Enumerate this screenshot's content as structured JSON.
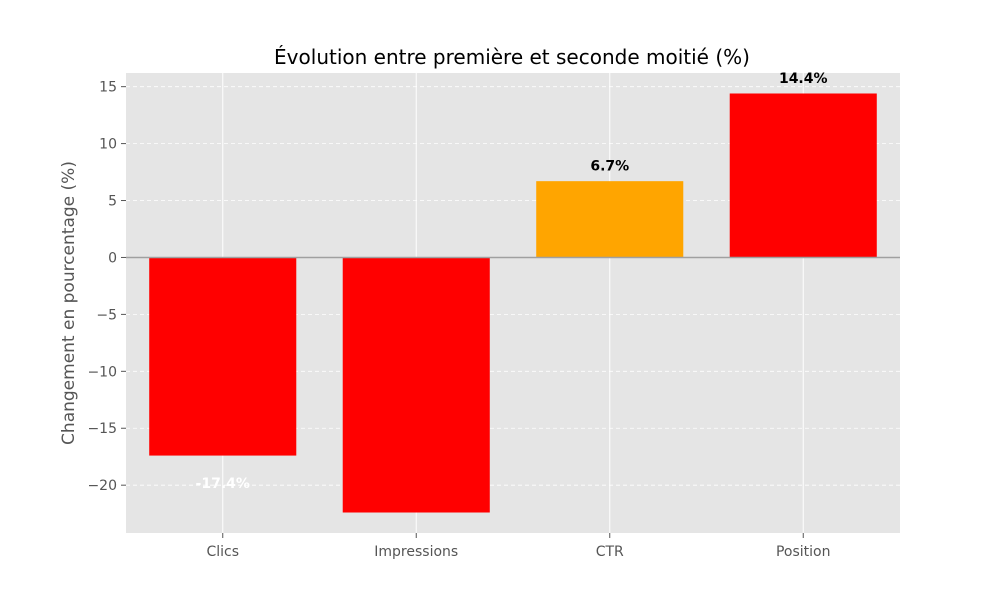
{
  "chart_data": {
    "type": "bar",
    "title": "Évolution entre première et seconde moitié (%)",
    "xlabel": "",
    "ylabel": "Changement en pourcentage (%)",
    "categories": [
      "Clics",
      "Impressions",
      "CTR",
      "Position"
    ],
    "values": [
      -17.4,
      -22.4,
      6.7,
      14.4
    ],
    "bar_colors": [
      "#ff0000",
      "#ff0000",
      "#ffa500",
      "#ff0000"
    ],
    "data_labels": [
      {
        "text": "-17.4%",
        "color": "#ffffff"
      },
      {
        "text": "",
        "color": "#000000"
      },
      {
        "text": "6.7%",
        "color": "#000000"
      },
      {
        "text": "14.4%",
        "color": "#000000"
      }
    ],
    "ylim": [
      -24.2,
      16.2
    ],
    "yticks": [
      15,
      10,
      5,
      0,
      -5,
      -10,
      -15,
      -20
    ],
    "ytick_labels": [
      "15",
      "10",
      "5",
      "0",
      "−5",
      "−10",
      "−15",
      "−20"
    ],
    "grid": true,
    "background": "#e5e5e5",
    "zero_line_color": "#a0a0a0"
  }
}
